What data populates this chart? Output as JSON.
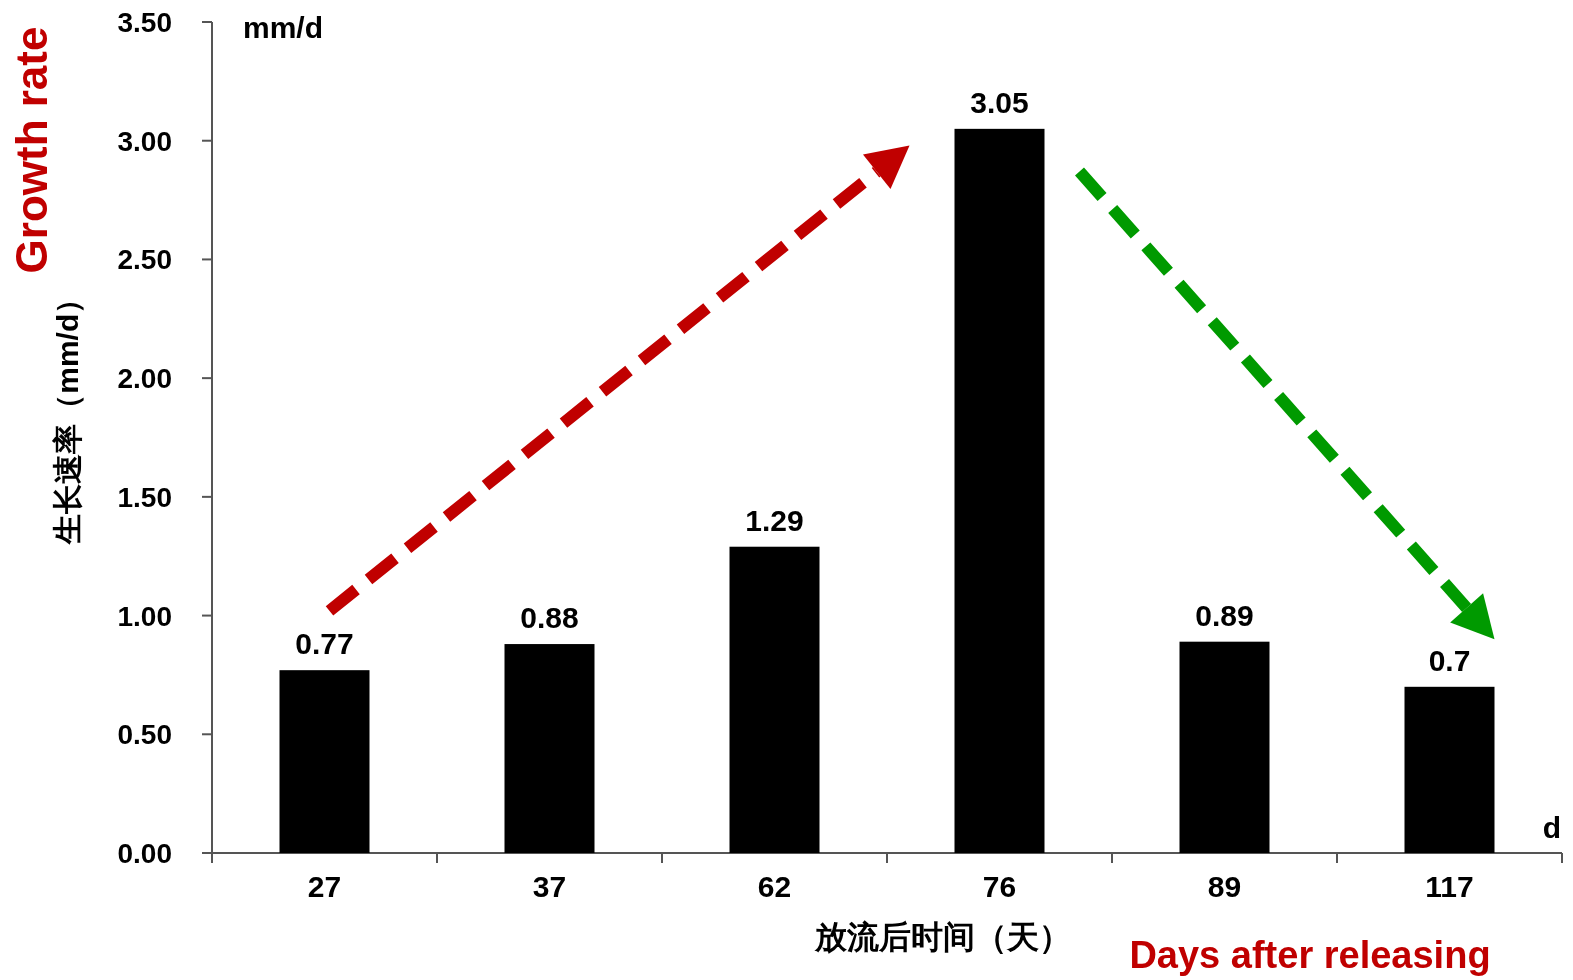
{
  "chart_data": {
    "type": "bar",
    "xlabel": "放流后时间（天）",
    "ylabel": "生长速率（mm/d）",
    "categories": [
      "27",
      "37",
      "62",
      "76",
      "89",
      "117"
    ],
    "values": [
      0.77,
      0.88,
      1.29,
      3.05,
      0.89,
      0.7
    ],
    "color": "#000000",
    "ylim": [
      0,
      3.5
    ],
    "yticks": [
      {
        "value": 0,
        "label": "0.00"
      },
      {
        "value": 0.5,
        "label": "0.50"
      },
      {
        "value": 1,
        "label": "1.00"
      },
      {
        "value": 1.5,
        "label": "1.50"
      },
      {
        "value": 2,
        "label": "2.00"
      },
      {
        "value": 2.5,
        "label": "2.50"
      },
      {
        "value": 3,
        "label": "3.00"
      },
      {
        "value": 3.5,
        "label": "3.50"
      }
    ],
    "data_labels": true,
    "annotations": [
      "Growth rate",
      "Days after releasing",
      "mm/d",
      "d"
    ]
  }
}
